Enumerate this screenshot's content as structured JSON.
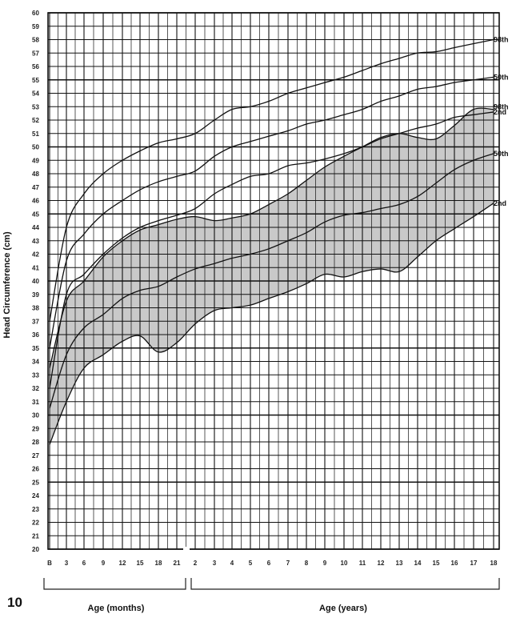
{
  "figure_number": "10",
  "chart_data": {
    "type": "line",
    "ylabel": "Head Circumference (cm)",
    "ylim": [
      20,
      60
    ],
    "y_ticks": [
      20,
      21,
      22,
      23,
      24,
      25,
      26,
      27,
      28,
      29,
      30,
      31,
      32,
      33,
      34,
      35,
      36,
      37,
      38,
      39,
      40,
      41,
      42,
      43,
      44,
      45,
      46,
      47,
      48,
      49,
      50,
      51,
      52,
      53,
      54,
      55,
      56,
      57,
      58,
      59,
      60
    ],
    "x_axes": [
      {
        "label": "Age (months)",
        "ticks": [
          "B",
          "3",
          "6",
          "9",
          "12",
          "15",
          "18",
          "21"
        ],
        "tick_values": [
          0,
          3,
          6,
          9,
          12,
          15,
          18,
          21
        ]
      },
      {
        "label": "Age (years)",
        "ticks": [
          "2",
          "3",
          "4",
          "5",
          "6",
          "7",
          "8",
          "9",
          "10",
          "11",
          "12",
          "13",
          "14",
          "15",
          "16",
          "17",
          "18"
        ],
        "tick_values": [
          2,
          3,
          4,
          5,
          6,
          7,
          8,
          9,
          10,
          11,
          12,
          13,
          14,
          15,
          16,
          17,
          18
        ]
      }
    ],
    "series": [
      {
        "name": "98th",
        "points": [
          [
            "B",
            37
          ],
          [
            "3",
            44
          ],
          [
            "6",
            46.5
          ],
          [
            "9",
            48
          ],
          [
            "12",
            49
          ],
          [
            "15",
            49.7
          ],
          [
            "18",
            50.3
          ],
          [
            "21",
            50.6
          ],
          [
            "2",
            51
          ],
          [
            "3",
            52
          ],
          [
            "4",
            52.8
          ],
          [
            "5",
            53
          ],
          [
            "6",
            53.4
          ],
          [
            "7",
            54
          ],
          [
            "8",
            54.4
          ],
          [
            "9",
            54.8
          ],
          [
            "10",
            55.2
          ],
          [
            "11",
            55.7
          ],
          [
            "12",
            56.2
          ],
          [
            "13",
            56.6
          ],
          [
            "14",
            57
          ],
          [
            "15",
            57.1
          ],
          [
            "16",
            57.4
          ],
          [
            "17",
            57.7
          ],
          [
            "18",
            58
          ]
        ]
      },
      {
        "name": "50th",
        "points": [
          [
            "B",
            35
          ],
          [
            "3",
            41.5
          ],
          [
            "6",
            43.5
          ],
          [
            "9",
            45
          ],
          [
            "12",
            46
          ],
          [
            "15",
            46.8
          ],
          [
            "18",
            47.4
          ],
          [
            "21",
            47.8
          ],
          [
            "2",
            48.2
          ],
          [
            "3",
            49.3
          ],
          [
            "4",
            50
          ],
          [
            "5",
            50.4
          ],
          [
            "6",
            50.8
          ],
          [
            "7",
            51.2
          ],
          [
            "8",
            51.7
          ],
          [
            "9",
            52
          ],
          [
            "10",
            52.4
          ],
          [
            "11",
            52.8
          ],
          [
            "12",
            53.4
          ],
          [
            "13",
            53.8
          ],
          [
            "14",
            54.3
          ],
          [
            "15",
            54.5
          ],
          [
            "16",
            54.8
          ],
          [
            "17",
            55
          ],
          [
            "18",
            55.2
          ]
        ]
      },
      {
        "name": "2nd",
        "points": [
          [
            "B",
            32
          ],
          [
            "3",
            39
          ],
          [
            "6",
            40.5
          ],
          [
            "9",
            42
          ],
          [
            "12",
            43.2
          ],
          [
            "15",
            44
          ],
          [
            "18",
            44.5
          ],
          [
            "21",
            44.9
          ],
          [
            "2",
            45.4
          ],
          [
            "3",
            46.5
          ],
          [
            "4",
            47.2
          ],
          [
            "5",
            47.8
          ],
          [
            "6",
            48
          ],
          [
            "7",
            48.6
          ],
          [
            "8",
            48.8
          ],
          [
            "9",
            49.1
          ],
          [
            "10",
            49.5
          ],
          [
            "11",
            50
          ],
          [
            "12",
            50.6
          ],
          [
            "13",
            51
          ],
          [
            "14",
            51.4
          ],
          [
            "15",
            51.7
          ],
          [
            "16",
            52.2
          ],
          [
            "17",
            52.4
          ],
          [
            "18",
            52.6
          ]
        ]
      },
      {
        "name": "98th",
        "points": [
          [
            "B",
            33.5
          ],
          [
            "3",
            38.5
          ],
          [
            "6",
            40
          ],
          [
            "9",
            41.8
          ],
          [
            "12",
            43
          ],
          [
            "15",
            43.8
          ],
          [
            "18",
            44.2
          ],
          [
            "21",
            44.6
          ],
          [
            "2",
            44.8
          ],
          [
            "3",
            44.5
          ],
          [
            "4",
            44.7
          ],
          [
            "5",
            45
          ],
          [
            "6",
            45.7
          ],
          [
            "7",
            46.5
          ],
          [
            "8",
            47.5
          ],
          [
            "9",
            48.5
          ],
          [
            "10",
            49.3
          ],
          [
            "11",
            50
          ],
          [
            "12",
            50.7
          ],
          [
            "13",
            51
          ],
          [
            "14",
            50.7
          ],
          [
            "15",
            50.6
          ],
          [
            "16",
            51.6
          ],
          [
            "17",
            52.8
          ],
          [
            "18",
            52.8
          ]
        ]
      },
      {
        "name": "50th",
        "points": [
          [
            "B",
            30.5
          ],
          [
            "3",
            34.5
          ],
          [
            "6",
            36.5
          ],
          [
            "9",
            37.5
          ],
          [
            "12",
            38.7
          ],
          [
            "15",
            39.3
          ],
          [
            "18",
            39.6
          ],
          [
            "21",
            40.3
          ],
          [
            "2",
            40.9
          ],
          [
            "3",
            41.3
          ],
          [
            "4",
            41.7
          ],
          [
            "5",
            42
          ],
          [
            "6",
            42.4
          ],
          [
            "7",
            43
          ],
          [
            "8",
            43.6
          ],
          [
            "9",
            44.4
          ],
          [
            "10",
            44.9
          ],
          [
            "11",
            45.1
          ],
          [
            "12",
            45.4
          ],
          [
            "13",
            45.7
          ],
          [
            "14",
            46.3
          ],
          [
            "15",
            47.3
          ],
          [
            "16",
            48.3
          ],
          [
            "17",
            49
          ],
          [
            "18",
            49.5
          ]
        ]
      },
      {
        "name": "2nd",
        "points": [
          [
            "B",
            27.8
          ],
          [
            "3",
            31
          ],
          [
            "6",
            33.5
          ],
          [
            "9",
            34.5
          ],
          [
            "12",
            35.5
          ],
          [
            "15",
            35.9
          ],
          [
            "18",
            34.7
          ],
          [
            "21",
            35.4
          ],
          [
            "2",
            36.8
          ],
          [
            "3",
            37.8
          ],
          [
            "4",
            38
          ],
          [
            "5",
            38.2
          ],
          [
            "6",
            38.7
          ],
          [
            "7",
            39.2
          ],
          [
            "8",
            39.8
          ],
          [
            "9",
            40.5
          ],
          [
            "10",
            40.3
          ],
          [
            "11",
            40.7
          ],
          [
            "12",
            40.9
          ],
          [
            "13",
            40.7
          ],
          [
            "14",
            41.8
          ],
          [
            "15",
            43
          ],
          [
            "16",
            43.9
          ],
          [
            "17",
            44.8
          ],
          [
            "18",
            45.8
          ]
        ]
      }
    ],
    "shaded_band": {
      "between": [
        3,
        5
      ]
    },
    "grid": true
  }
}
